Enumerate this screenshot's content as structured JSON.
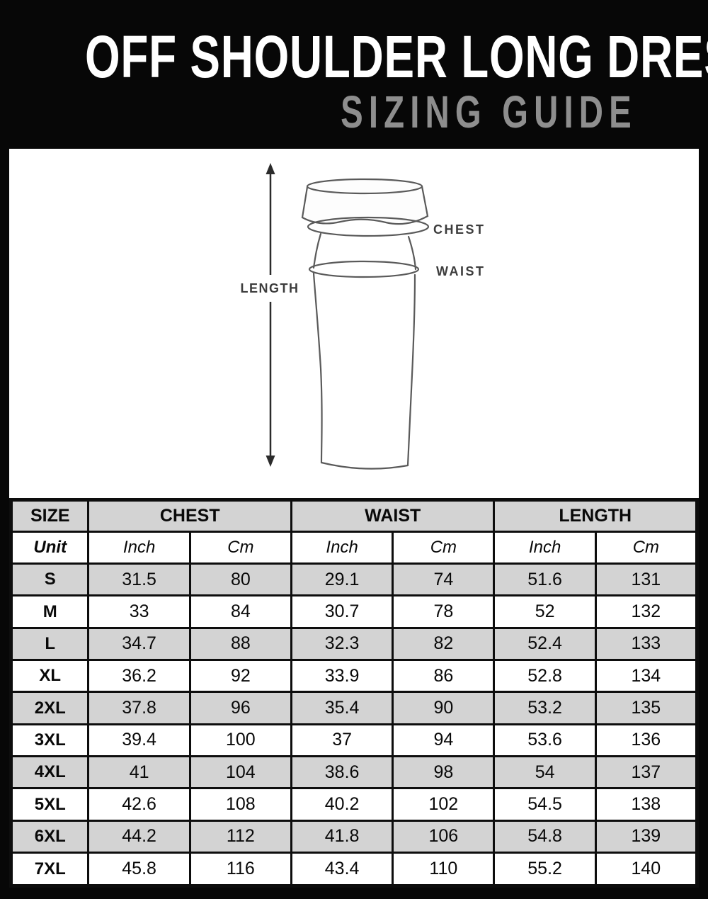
{
  "header": {
    "title": "OFF SHOULDER LONG DRESS",
    "subtitle": "SIZING GUIDE",
    "title_color": "#ffffff",
    "subtitle_color": "#8e8e8e",
    "background_color": "#070707"
  },
  "diagram": {
    "length_label": "LENGTH",
    "chest_label": "CHEST",
    "waist_label": "WAIST",
    "line_color": "#5a5a5a",
    "arrow_color": "#2b2b2b",
    "label_color": "#3c3c3c"
  },
  "table": {
    "stripe_color": "#d3d3d3",
    "border_color": "#0d0d0d",
    "group_headers": [
      {
        "label": "SIZE"
      },
      {
        "label": "CHEST"
      },
      {
        "label": "WAIST"
      },
      {
        "label": "LENGTH"
      }
    ],
    "unit_row": [
      "Unit",
      "Inch",
      "Cm",
      "Inch",
      "Cm",
      "Inch",
      "Cm"
    ],
    "rows": [
      {
        "size": "S",
        "values": [
          "31.5",
          "80",
          "29.1",
          "74",
          "51.6",
          "131"
        ]
      },
      {
        "size": "M",
        "values": [
          "33",
          "84",
          "30.7",
          "78",
          "52",
          "132"
        ]
      },
      {
        "size": "L",
        "values": [
          "34.7",
          "88",
          "32.3",
          "82",
          "52.4",
          "133"
        ]
      },
      {
        "size": "XL",
        "values": [
          "36.2",
          "92",
          "33.9",
          "86",
          "52.8",
          "134"
        ]
      },
      {
        "size": "2XL",
        "values": [
          "37.8",
          "96",
          "35.4",
          "90",
          "53.2",
          "135"
        ]
      },
      {
        "size": "3XL",
        "values": [
          "39.4",
          "100",
          "37",
          "94",
          "53.6",
          "136"
        ]
      },
      {
        "size": "4XL",
        "values": [
          "41",
          "104",
          "38.6",
          "98",
          "54",
          "137"
        ]
      },
      {
        "size": "5XL",
        "values": [
          "42.6",
          "108",
          "40.2",
          "102",
          "54.5",
          "138"
        ]
      },
      {
        "size": "6XL",
        "values": [
          "44.2",
          "112",
          "41.8",
          "106",
          "54.8",
          "139"
        ]
      },
      {
        "size": "7XL",
        "values": [
          "45.8",
          "116",
          "43.4",
          "110",
          "55.2",
          "140"
        ]
      }
    ]
  }
}
